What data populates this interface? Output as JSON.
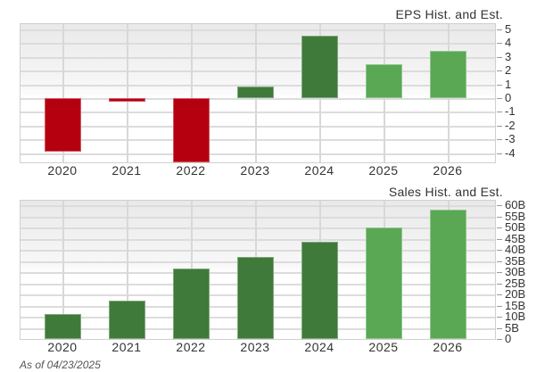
{
  "chart_data": [
    {
      "type": "bar",
      "title": "EPS Hist. and Est.",
      "categories": [
        "2020",
        "2021",
        "2022",
        "2023",
        "2024",
        "2025",
        "2026"
      ],
      "values": [
        -3.9,
        -0.26,
        -4.7,
        0.85,
        4.55,
        2.5,
        3.45
      ],
      "series_kind": [
        "actual-negative",
        "actual-negative",
        "actual-negative",
        "actual",
        "actual",
        "estimate",
        "estimate"
      ],
      "ylabel": "",
      "xlabel": "",
      "yticks": [
        "5",
        "4",
        "3",
        "2",
        "1",
        "0",
        "-1",
        "-2",
        "-3",
        "-4"
      ],
      "ylim": [
        -4.7,
        5.5
      ],
      "grid": true,
      "colors": {
        "negative": "#b5000f",
        "actual": "#3f7a3a",
        "estimate": "#5aa854"
      }
    },
    {
      "type": "bar",
      "title": "Sales Hist. and Est.",
      "categories": [
        "2020",
        "2021",
        "2022",
        "2023",
        "2024",
        "2025",
        "2026"
      ],
      "values": [
        11.2,
        17.2,
        31.6,
        36.8,
        43.6,
        50.0,
        58.0
      ],
      "unit": "B",
      "series_kind": [
        "actual",
        "actual",
        "actual",
        "actual",
        "actual",
        "estimate",
        "estimate"
      ],
      "ylabel": "",
      "xlabel": "",
      "yticks": [
        "60B",
        "55B",
        "50B",
        "45B",
        "40B",
        "35B",
        "30B",
        "25B",
        "20B",
        "15B",
        "10B",
        "5B",
        "0"
      ],
      "ylim": [
        0,
        62
      ],
      "grid": true,
      "colors": {
        "actual": "#3f7a3a",
        "estimate": "#5aa854"
      }
    }
  ],
  "eps": {
    "title": "EPS Hist. and Est."
  },
  "sales": {
    "title": "Sales Hist. and Est."
  },
  "footer": {
    "as_of": "As of 04/23/2025"
  }
}
